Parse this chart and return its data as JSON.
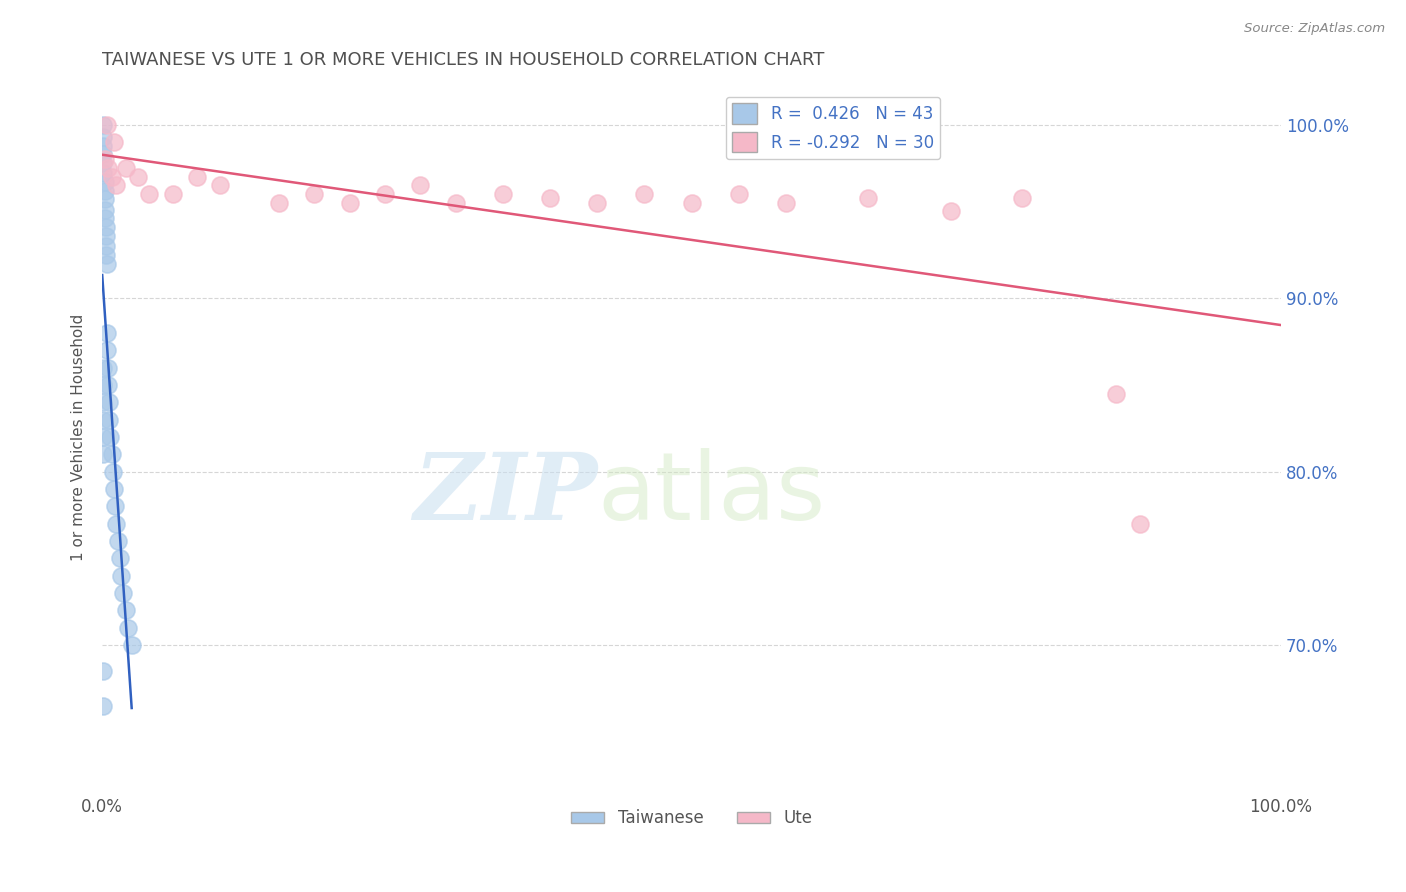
{
  "title": "TAIWANESE VS UTE 1 OR MORE VEHICLES IN HOUSEHOLD CORRELATION CHART",
  "source": "Source: ZipAtlas.com",
  "ylabel": "1 or more Vehicles in Household",
  "watermark_zip": "ZIP",
  "watermark_atlas": "atlas",
  "xlim": [
    0.0,
    1.0
  ],
  "ylim": [
    0.615,
    1.025
  ],
  "xtick_labels": [
    "0.0%",
    "100.0%"
  ],
  "ytick_labels": [
    "70.0%",
    "80.0%",
    "90.0%",
    "100.0%"
  ],
  "ytick_positions": [
    0.7,
    0.8,
    0.9,
    1.0
  ],
  "legend_r_taiwanese": "0.426",
  "legend_n_taiwanese": "43",
  "legend_r_ute": "-0.292",
  "legend_n_ute": "30",
  "taiwanese_color": "#a8c8e8",
  "ute_color": "#f5b8c8",
  "taiwanese_line_color": "#3060c0",
  "ute_line_color": "#e05878",
  "background_color": "#ffffff",
  "grid_color": "#cccccc",
  "title_color": "#505050",
  "label_color": "#555555",
  "right_tick_color": "#4472c4",
  "taiwanese_scatter_x": [
    0.001,
    0.001,
    0.001,
    0.001,
    0.001,
    0.001,
    0.002,
    0.002,
    0.002,
    0.002,
    0.002,
    0.003,
    0.003,
    0.003,
    0.003,
    0.004,
    0.004,
    0.004,
    0.005,
    0.005,
    0.006,
    0.006,
    0.007,
    0.008,
    0.009,
    0.01,
    0.011,
    0.012,
    0.013,
    0.015,
    0.016,
    0.018,
    0.02,
    0.022,
    0.025,
    0.001,
    0.001,
    0.001,
    0.001,
    0.001,
    0.001,
    0.001,
    0.001
  ],
  "taiwanese_scatter_y": [
    1.0,
    0.993,
    0.988,
    0.983,
    0.978,
    0.972,
    0.967,
    0.962,
    0.957,
    0.951,
    0.946,
    0.941,
    0.936,
    0.93,
    0.925,
    0.92,
    0.88,
    0.87,
    0.86,
    0.85,
    0.84,
    0.83,
    0.82,
    0.81,
    0.8,
    0.79,
    0.78,
    0.77,
    0.76,
    0.75,
    0.74,
    0.73,
    0.72,
    0.71,
    0.7,
    0.86,
    0.85,
    0.84,
    0.83,
    0.82,
    0.81,
    0.685,
    0.665
  ],
  "ute_scatter_x": [
    0.004,
    0.01,
    0.02,
    0.03,
    0.04,
    0.08,
    0.1,
    0.15,
    0.18,
    0.21,
    0.24,
    0.27,
    0.3,
    0.34,
    0.38,
    0.42,
    0.46,
    0.5,
    0.54,
    0.58,
    0.65,
    0.72,
    0.78,
    0.002,
    0.005,
    0.008,
    0.012,
    0.06,
    0.86,
    0.88
  ],
  "ute_scatter_y": [
    1.0,
    0.99,
    0.975,
    0.97,
    0.96,
    0.97,
    0.965,
    0.955,
    0.96,
    0.955,
    0.96,
    0.965,
    0.955,
    0.96,
    0.958,
    0.955,
    0.96,
    0.955,
    0.96,
    0.955,
    0.958,
    0.95,
    0.958,
    0.98,
    0.975,
    0.97,
    0.965,
    0.96,
    0.845,
    0.77
  ]
}
